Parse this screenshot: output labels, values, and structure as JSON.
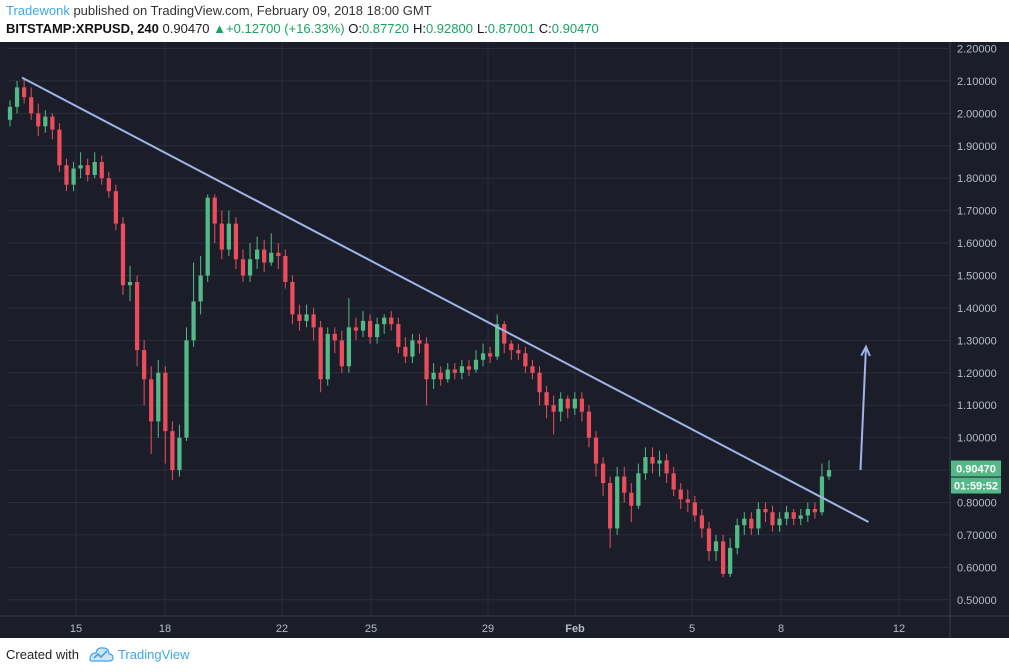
{
  "header": {
    "author": "Tradewonk",
    "published": "published on TradingView.com, February 09, 2018 18:00 GMT",
    "symbol": "BITSTAMP:XRPUSD, 240",
    "last": "0.90470",
    "change": "+0.12700 (+16.33%)",
    "open_label": "O:",
    "open": "0.87720",
    "high_label": "H:",
    "high": "0.92800",
    "low_label": "L:",
    "low": "0.87001",
    "close_label": "C:",
    "close": "0.90470"
  },
  "footer": {
    "created_with": "Created with",
    "brand": "TradingView"
  },
  "colors": {
    "background": "#1b1e29",
    "grid": "#2a2e3b",
    "up": "#53b987",
    "down": "#eb4d5c",
    "trendline": "#9fb4e8",
    "last_price_label": "#53b987"
  },
  "chart_data": {
    "type": "candlestick",
    "ylim": [
      0.45,
      2.22
    ],
    "y_ticks": [
      "2.20000",
      "2.10000",
      "2.00000",
      "1.90000",
      "1.80000",
      "1.70000",
      "1.60000",
      "1.50000",
      "1.40000",
      "1.30000",
      "1.20000",
      "1.10000",
      "1.00000",
      "0.90000",
      "0.80000",
      "0.70000",
      "0.60000",
      "0.50000"
    ],
    "x_ticks": [
      "15",
      "18",
      "22",
      "25",
      "29",
      "Feb",
      "5",
      "8",
      "12"
    ],
    "last_price_label": "0.90470",
    "countdown_label": "01:59:52",
    "trendline": {
      "from": {
        "date": "Jan 13",
        "price": 2.11
      },
      "to": {
        "date": "Feb 9",
        "price": 0.74
      }
    },
    "projection_arrow": {
      "from": {
        "date": "Feb 9",
        "price": 0.9
      },
      "to": {
        "date": "Feb 10",
        "price": 1.28
      }
    },
    "candles": [
      [
        1.98,
        2.02,
        2.04,
        1.96
      ],
      [
        2.02,
        2.08,
        2.1,
        2.0
      ],
      [
        2.08,
        2.05,
        2.11,
        2.03
      ],
      [
        2.05,
        2.0,
        2.08,
        1.98
      ],
      [
        2.0,
        1.96,
        2.03,
        1.93
      ],
      [
        1.96,
        1.99,
        2.01,
        1.94
      ],
      [
        1.99,
        1.95,
        2.0,
        1.92
      ],
      [
        1.95,
        1.84,
        1.97,
        1.82
      ],
      [
        1.84,
        1.78,
        1.86,
        1.76
      ],
      [
        1.78,
        1.83,
        1.85,
        1.76
      ],
      [
        1.83,
        1.84,
        1.88,
        1.8
      ],
      [
        1.84,
        1.81,
        1.86,
        1.79
      ],
      [
        1.81,
        1.85,
        1.88,
        1.8
      ],
      [
        1.85,
        1.8,
        1.87,
        1.78
      ],
      [
        1.8,
        1.76,
        1.82,
        1.74
      ],
      [
        1.76,
        1.66,
        1.78,
        1.64
      ],
      [
        1.66,
        1.47,
        1.68,
        1.44
      ],
      [
        1.47,
        1.48,
        1.53,
        1.42
      ],
      [
        1.48,
        1.27,
        1.5,
        1.22
      ],
      [
        1.27,
        1.18,
        1.3,
        1.1
      ],
      [
        1.18,
        1.05,
        1.22,
        0.95
      ],
      [
        1.05,
        1.2,
        1.24,
        1.0
      ],
      [
        1.2,
        1.02,
        1.22,
        0.92
      ],
      [
        1.02,
        0.9,
        1.05,
        0.87
      ],
      [
        0.9,
        1.0,
        1.04,
        0.88
      ],
      [
        1.0,
        1.3,
        1.34,
        0.99
      ],
      [
        1.3,
        1.42,
        1.54,
        1.28
      ],
      [
        1.42,
        1.5,
        1.56,
        1.38
      ],
      [
        1.5,
        1.74,
        1.75,
        1.48
      ],
      [
        1.74,
        1.66,
        1.75,
        1.6
      ],
      [
        1.66,
        1.58,
        1.7,
        1.55
      ],
      [
        1.58,
        1.66,
        1.7,
        1.56
      ],
      [
        1.66,
        1.55,
        1.68,
        1.52
      ],
      [
        1.55,
        1.5,
        1.58,
        1.48
      ],
      [
        1.5,
        1.55,
        1.6,
        1.48
      ],
      [
        1.55,
        1.58,
        1.62,
        1.52
      ],
      [
        1.58,
        1.54,
        1.61,
        1.51
      ],
      [
        1.54,
        1.57,
        1.63,
        1.53
      ],
      [
        1.57,
        1.56,
        1.6,
        1.52
      ],
      [
        1.56,
        1.48,
        1.58,
        1.46
      ],
      [
        1.48,
        1.38,
        1.5,
        1.35
      ],
      [
        1.38,
        1.36,
        1.41,
        1.33
      ],
      [
        1.36,
        1.38,
        1.41,
        1.34
      ],
      [
        1.38,
        1.34,
        1.4,
        1.3
      ],
      [
        1.34,
        1.18,
        1.36,
        1.14
      ],
      [
        1.18,
        1.32,
        1.34,
        1.16
      ],
      [
        1.32,
        1.3,
        1.34,
        1.26
      ],
      [
        1.3,
        1.22,
        1.33,
        1.2
      ],
      [
        1.22,
        1.34,
        1.43,
        1.2
      ],
      [
        1.34,
        1.33,
        1.37,
        1.3
      ],
      [
        1.33,
        1.36,
        1.39,
        1.31
      ],
      [
        1.36,
        1.31,
        1.38,
        1.29
      ],
      [
        1.31,
        1.35,
        1.37,
        1.29
      ],
      [
        1.35,
        1.37,
        1.38,
        1.32
      ],
      [
        1.37,
        1.35,
        1.39,
        1.33
      ],
      [
        1.35,
        1.28,
        1.37,
        1.26
      ],
      [
        1.28,
        1.25,
        1.31,
        1.23
      ],
      [
        1.25,
        1.3,
        1.32,
        1.23
      ],
      [
        1.3,
        1.29,
        1.32,
        1.26
      ],
      [
        1.29,
        1.18,
        1.31,
        1.1
      ],
      [
        1.18,
        1.2,
        1.23,
        1.15
      ],
      [
        1.2,
        1.18,
        1.22,
        1.16
      ],
      [
        1.18,
        1.21,
        1.23,
        1.17
      ],
      [
        1.21,
        1.2,
        1.23,
        1.18
      ],
      [
        1.2,
        1.22,
        1.24,
        1.18
      ],
      [
        1.22,
        1.21,
        1.24,
        1.19
      ],
      [
        1.21,
        1.24,
        1.27,
        1.2
      ],
      [
        1.24,
        1.26,
        1.29,
        1.22
      ],
      [
        1.26,
        1.25,
        1.28,
        1.23
      ],
      [
        1.25,
        1.35,
        1.38,
        1.24
      ],
      [
        1.35,
        1.29,
        1.36,
        1.26
      ],
      [
        1.29,
        1.27,
        1.3,
        1.24
      ],
      [
        1.27,
        1.26,
        1.29,
        1.24
      ],
      [
        1.26,
        1.22,
        1.28,
        1.2
      ],
      [
        1.22,
        1.2,
        1.24,
        1.18
      ],
      [
        1.2,
        1.14,
        1.22,
        1.1
      ],
      [
        1.14,
        1.1,
        1.16,
        1.06
      ],
      [
        1.1,
        1.08,
        1.13,
        1.01
      ],
      [
        1.08,
        1.12,
        1.14,
        1.05
      ],
      [
        1.12,
        1.09,
        1.13,
        1.06
      ],
      [
        1.09,
        1.12,
        1.14,
        1.07
      ],
      [
        1.12,
        1.08,
        1.14,
        1.05
      ],
      [
        1.08,
        1.0,
        1.1,
        0.97
      ],
      [
        1.0,
        0.92,
        1.02,
        0.88
      ],
      [
        0.92,
        0.86,
        0.94,
        0.82
      ],
      [
        0.86,
        0.72,
        0.88,
        0.66
      ],
      [
        0.72,
        0.88,
        0.91,
        0.7
      ],
      [
        0.88,
        0.83,
        0.91,
        0.8
      ],
      [
        0.83,
        0.79,
        0.86,
        0.74
      ],
      [
        0.79,
        0.89,
        0.92,
        0.78
      ],
      [
        0.89,
        0.94,
        0.97,
        0.87
      ],
      [
        0.94,
        0.92,
        0.97,
        0.89
      ],
      [
        0.92,
        0.93,
        0.96,
        0.88
      ],
      [
        0.93,
        0.89,
        0.95,
        0.86
      ],
      [
        0.89,
        0.84,
        0.91,
        0.82
      ],
      [
        0.84,
        0.81,
        0.86,
        0.78
      ],
      [
        0.81,
        0.8,
        0.84,
        0.77
      ],
      [
        0.8,
        0.76,
        0.82,
        0.74
      ],
      [
        0.76,
        0.72,
        0.78,
        0.69
      ],
      [
        0.72,
        0.65,
        0.74,
        0.62
      ],
      [
        0.65,
        0.68,
        0.7,
        0.62
      ],
      [
        0.68,
        0.58,
        0.7,
        0.57
      ],
      [
        0.58,
        0.66,
        0.69,
        0.57
      ],
      [
        0.66,
        0.73,
        0.75,
        0.64
      ],
      [
        0.73,
        0.75,
        0.77,
        0.7
      ],
      [
        0.75,
        0.72,
        0.77,
        0.7
      ],
      [
        0.72,
        0.78,
        0.8,
        0.7
      ],
      [
        0.78,
        0.77,
        0.8,
        0.74
      ],
      [
        0.77,
        0.73,
        0.79,
        0.71
      ],
      [
        0.73,
        0.75,
        0.77,
        0.71
      ],
      [
        0.75,
        0.77,
        0.79,
        0.73
      ],
      [
        0.77,
        0.75,
        0.78,
        0.73
      ],
      [
        0.75,
        0.76,
        0.78,
        0.73
      ],
      [
        0.76,
        0.78,
        0.8,
        0.74
      ],
      [
        0.78,
        0.77,
        0.8,
        0.75
      ],
      [
        0.77,
        0.88,
        0.92,
        0.76
      ],
      [
        0.88,
        0.9,
        0.93,
        0.87
      ]
    ]
  }
}
